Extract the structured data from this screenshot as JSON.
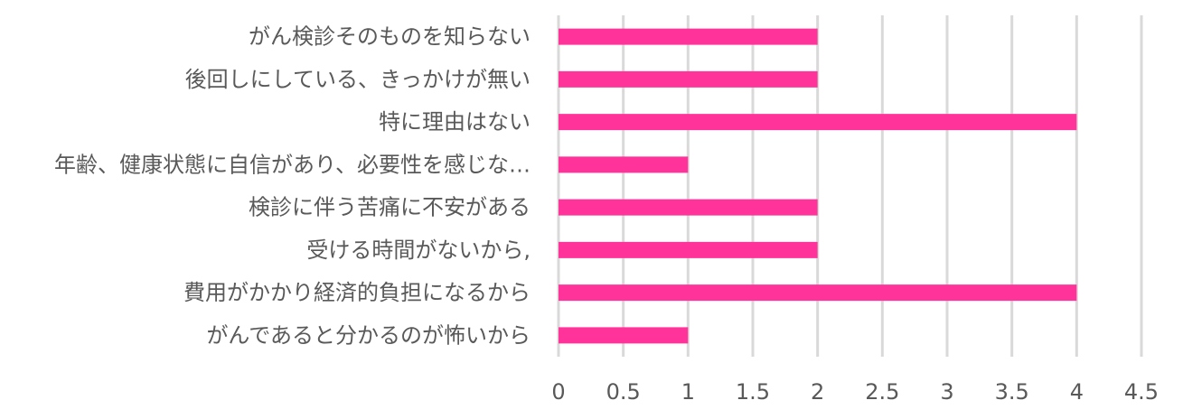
{
  "chart_data": {
    "type": "bar",
    "orientation": "horizontal",
    "categories": [
      "がん検診そのものを知らない",
      "後回しにしている、きっかけが無い",
      "特に理由はない",
      "年齢、健康状態に自信があり、必要性を感じな…",
      "検診に伴う苦痛に不安がある",
      "受ける時間がないから,",
      "費用がかかり経済的負担になるから",
      "がんであると分かるのが怖いから"
    ],
    "values": [
      2,
      2,
      4,
      1,
      2,
      2,
      4,
      1
    ],
    "xlim": [
      0,
      4.5
    ],
    "xticks": [
      "0",
      "0.5",
      "1",
      "1.5",
      "2",
      "2.5",
      "3",
      "3.5",
      "4",
      "4.5"
    ],
    "title": "",
    "xlabel": "",
    "ylabel": "",
    "grid": "vertical",
    "legend": "none",
    "bar_color": "#ff3399",
    "grid_color": "#d9d9d9",
    "text_color": "#595959"
  }
}
